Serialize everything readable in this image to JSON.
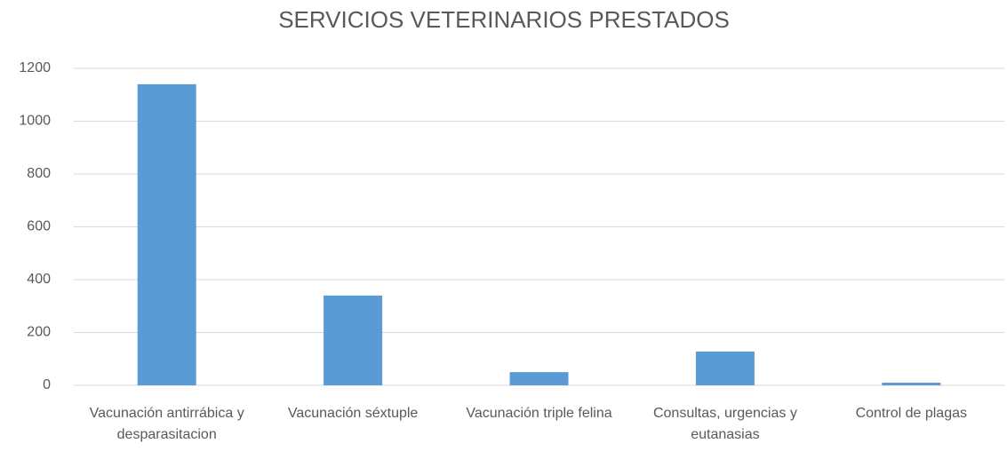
{
  "chart_data": {
    "type": "bar",
    "title": "SERVICIOS VETERINARIOS PRESTADOS",
    "categories": [
      "Vacunación antirrábica y desparasitacion",
      "Vacunación séxtuple",
      "Vacunación triple felina",
      "Consultas, urgencias y eutanasias",
      "Control de plagas"
    ],
    "values": [
      1140,
      340,
      50,
      128,
      10
    ],
    "color": "#5b9bd5",
    "ylim": [
      0,
      1200
    ],
    "yticks": [
      0,
      200,
      400,
      600,
      800,
      1000,
      1200
    ],
    "grid": true
  }
}
